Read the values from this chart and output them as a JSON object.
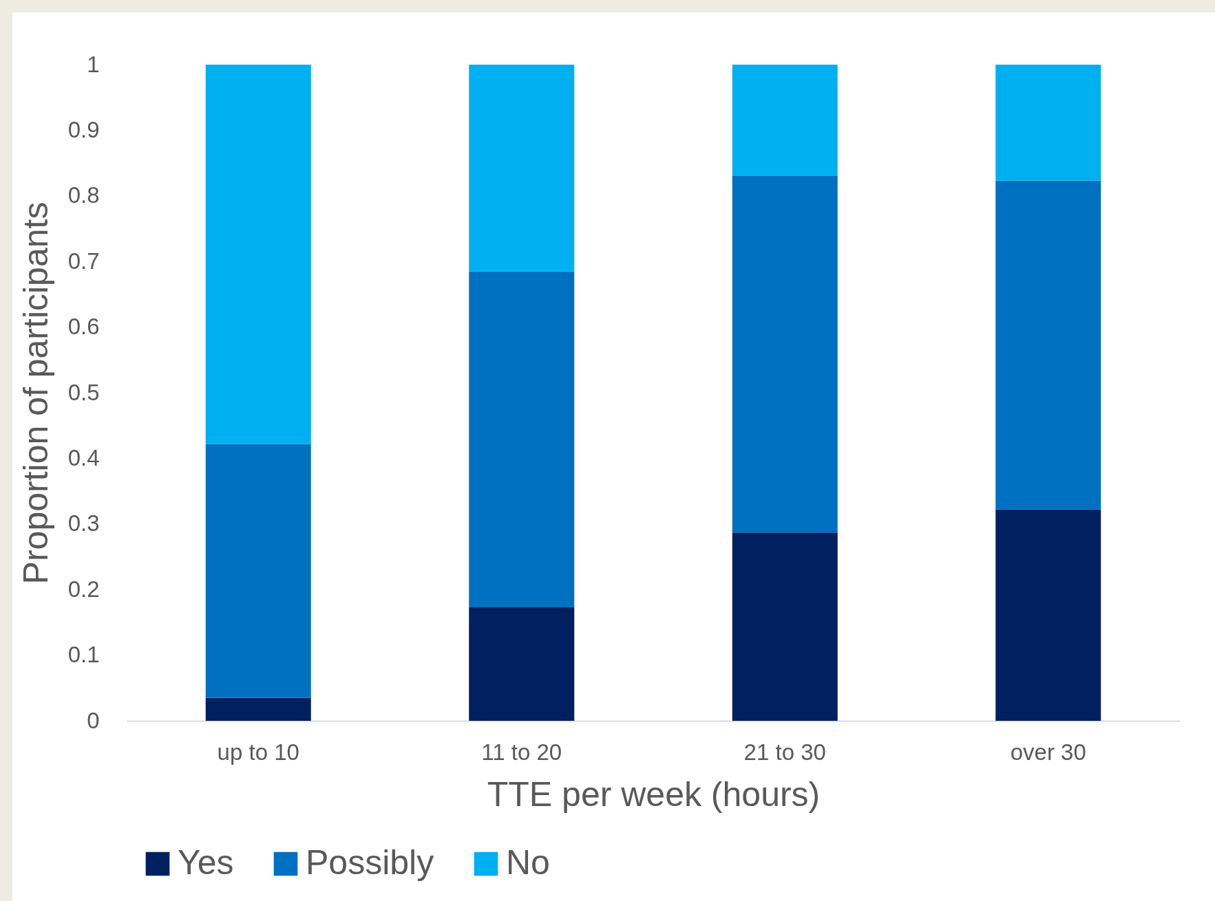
{
  "chart_data": {
    "type": "bar",
    "stacked": true,
    "xlabel": "TTE per week (hours)",
    "ylabel": "Proportion of participants",
    "categories": [
      "up to 10",
      "11 to 20",
      "21 to 30",
      "over 30"
    ],
    "series": [
      {
        "name": "Yes",
        "color": "#002060",
        "values": [
          0.035,
          0.173,
          0.287,
          0.322
        ]
      },
      {
        "name": "Possibly",
        "color": "#0070c0",
        "values": [
          0.387,
          0.512,
          0.544,
          0.501
        ]
      },
      {
        "name": "No",
        "color": "#00b0f0",
        "values": [
          0.578,
          0.315,
          0.169,
          0.177
        ]
      }
    ],
    "ylim": [
      0,
      1
    ],
    "yticks": [
      0,
      0.1,
      0.2,
      0.3,
      0.4,
      0.5,
      0.6,
      0.7,
      0.8,
      0.9,
      1
    ],
    "grid": false,
    "legend": "bottom"
  }
}
